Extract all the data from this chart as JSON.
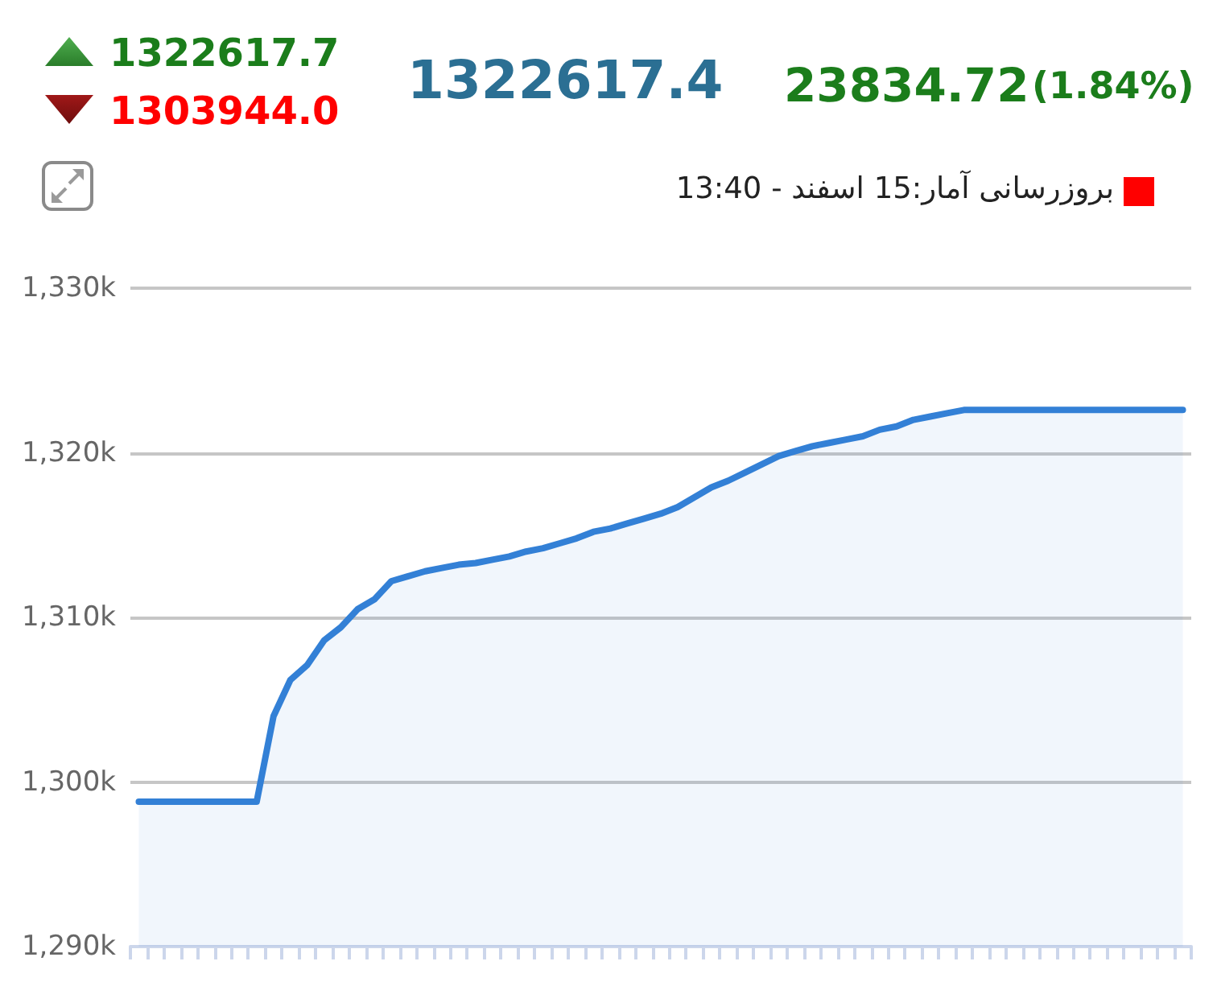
{
  "chart_data": {
    "type": "area",
    "title": "1322617.4",
    "annotations": [
      "1322617.7",
      "1303944.0",
      "23834.72",
      "(1.84%)",
      "بروزرسانی آمار:15 اسفند - 13:40"
    ],
    "categories": [
      null,
      null,
      null,
      null,
      null,
      null,
      null,
      null,
      null,
      null,
      null,
      null,
      null,
      null,
      null,
      null,
      null,
      null,
      null,
      null,
      null,
      null,
      null,
      null,
      null,
      null,
      null,
      null,
      null,
      null,
      null,
      null,
      null,
      null,
      null,
      null,
      null,
      null,
      null,
      null,
      null,
      null,
      null,
      null,
      null,
      null,
      null,
      null,
      null,
      null,
      null,
      null,
      null,
      null,
      null,
      null,
      null,
      null,
      null,
      null,
      null,
      null,
      null
    ],
    "series": [
      {
        "color": "#3380d6",
        "values": [
          1298800,
          1298800,
          1298800,
          1298800,
          1298800,
          1298800,
          1298800,
          1298800,
          1304000,
          1306200,
          1307100,
          1308600,
          1309400,
          1310500,
          1311100,
          1312200,
          1312500,
          1312800,
          1313000,
          1313200,
          1313300,
          1313500,
          1313700,
          1314000,
          1314200,
          1314500,
          1314800,
          1315200,
          1315400,
          1315700,
          1316000,
          1316300,
          1316700,
          1317300,
          1317900,
          1318300,
          1318800,
          1319300,
          1319800,
          1320100,
          1320400,
          1320600,
          1320800,
          1321000,
          1321400,
          1321600,
          1322000,
          1322200,
          1322400,
          1322600,
          1322600,
          1322600,
          1322600,
          1322600,
          1322600,
          1322600,
          1322600,
          1322600,
          1322600,
          1322600,
          1322600,
          1322600,
          1322600
        ]
      }
    ],
    "ylim": [
      1290000,
      1330000
    ],
    "yticks": [
      {
        "value": 1290000,
        "label": "1,290k"
      },
      {
        "value": 1300000,
        "label": "1,300k"
      },
      {
        "value": 1310000,
        "label": "1,310k"
      },
      {
        "value": 1320000,
        "label": "1,320k"
      },
      {
        "value": 1330000,
        "label": "1,330k"
      }
    ],
    "grid": "y",
    "tick_labels": "y"
  }
}
